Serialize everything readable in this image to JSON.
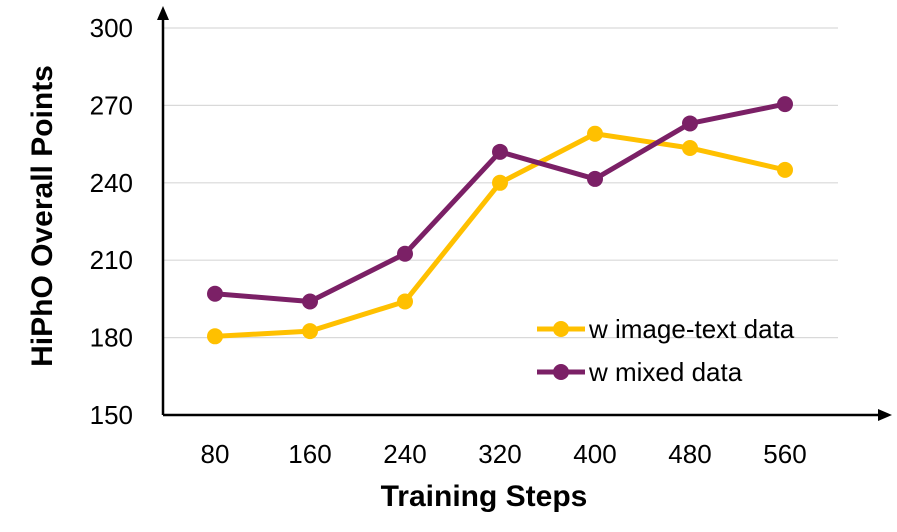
{
  "chart_data": {
    "type": "line",
    "title": "",
    "xlabel": "Training Steps",
    "ylabel": "HiPhO Overall Points",
    "categories": [
      "80",
      "160",
      "240",
      "320",
      "400",
      "480",
      "560"
    ],
    "ylim": [
      150,
      300
    ],
    "yticks": [
      "150",
      "180",
      "210",
      "240",
      "270",
      "300"
    ],
    "grid": true,
    "legend": "right",
    "series": [
      {
        "name": "w image-text data",
        "color": "#ffc000",
        "values": [
          180.5,
          182.5,
          194,
          240,
          259,
          253.5,
          245
        ]
      },
      {
        "name": "w mixed data",
        "color": "#7b2066",
        "values": [
          197,
          194,
          212.5,
          252,
          241.5,
          263,
          270.5
        ]
      }
    ]
  }
}
